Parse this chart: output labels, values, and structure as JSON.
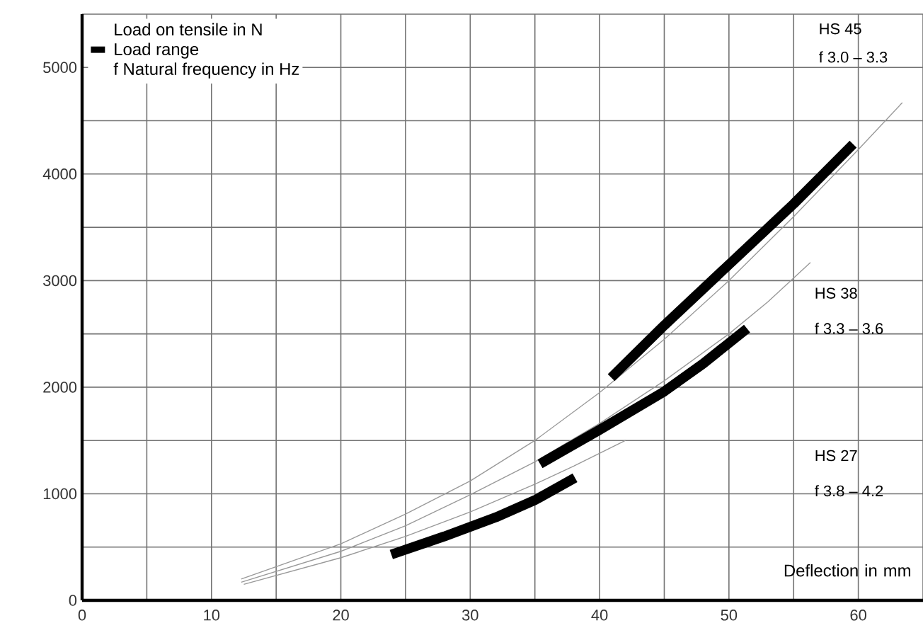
{
  "chart_data": {
    "type": "line",
    "xlabel": "Deflection in mm",
    "ylabel": "Load on tensile in N",
    "xlim": [
      0,
      65
    ],
    "ylim": [
      0,
      5500
    ],
    "xticks": [
      0,
      {
        "value": 5,
        "label": null
      },
      10,
      {
        "value": 15,
        "label": null
      },
      20,
      {
        "value": 25,
        "label": null
      },
      30,
      {
        "value": 35,
        "label": null
      },
      40,
      {
        "value": 45,
        "label": null
      },
      50,
      {
        "value": 55,
        "label": null
      },
      60,
      {
        "value": 65,
        "label": null
      }
    ],
    "yticks": [
      0,
      {
        "value": 500,
        "label": null
      },
      1000,
      {
        "value": 1500,
        "label": null
      },
      2000,
      {
        "value": 2500,
        "label": null
      },
      3000,
      {
        "value": 3500,
        "label": null
      },
      4000,
      {
        "value": 4500,
        "label": null
      },
      5000,
      {
        "value": 5500,
        "label": null
      }
    ],
    "grid": true,
    "legend": "top left",
    "marker": "none",
    "line_style": "solid",
    "series": [
      {
        "color": "#999999",
        "x": [
          12.3,
          20,
          25,
          30,
          35,
          40,
          45,
          50,
          55,
          60,
          63.4
        ],
        "values": [
          200,
          530,
          810,
          1120,
          1500,
          1950,
          2450,
          3000,
          3600,
          4230,
          4670
        ]
      },
      {
        "color": "#999999",
        "x": [
          12.3,
          20,
          25,
          30,
          35,
          40,
          45,
          50,
          53,
          56.3
        ],
        "values": [
          170,
          460,
          700,
          990,
          1300,
          1660,
          2060,
          2500,
          2800,
          3170
        ]
      },
      {
        "color": "#999999",
        "x": [
          12.5,
          20,
          25,
          30,
          35,
          38,
          42
        ],
        "values": [
          150,
          400,
          600,
          830,
          1090,
          1260,
          1500
        ]
      },
      {
        "name": "Load range",
        "color": "#000000",
        "x": [
          23.9,
          28,
          32,
          35,
          38.1,
          36.7,
          35.4,
          40,
          45,
          48,
          51.4,
          46,
          40.9,
          45,
          50,
          55,
          59.6
        ],
        "values": [
          430,
          600,
          780,
          940,
          1150,
          null,
          1280,
          1600,
          1960,
          2220,
          2550,
          null,
          2090,
          2580,
          3150,
          3720,
          4280
        ]
      }
    ],
    "annotations": [
      "f Natural frequency in Hz",
      "HS 45",
      "f 3.0 – 3.3",
      "HS 38",
      "f 3.3 – 3.6",
      "HS 27",
      "f 3.8 – 4.2"
    ]
  }
}
